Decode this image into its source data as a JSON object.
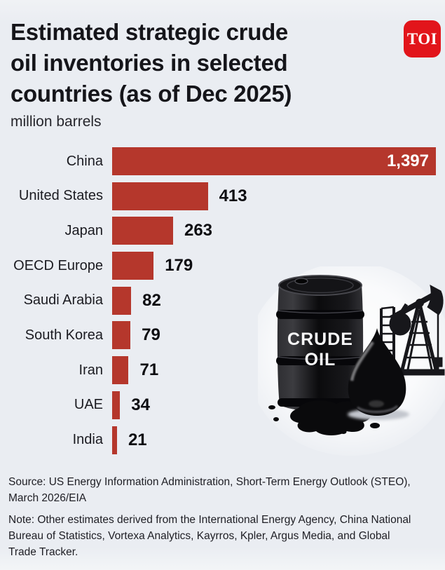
{
  "header": {
    "title_lines": [
      "Estimated strategic crude",
      "oil inventories in selected",
      "countries (as of Dec 2025)"
    ],
    "subtitle": "million barrels",
    "logo_text": "TOI",
    "logo_color": "#e2151b"
  },
  "chart_data": {
    "type": "bar",
    "orientation": "horizontal",
    "title": "Estimated strategic crude oil inventories in selected countries (as of Dec 2025)",
    "unit_label": "million barrels",
    "categories": [
      "China",
      "United States",
      "Japan",
      "OECD Europe",
      "Saudi Arabia",
      "South Korea",
      "Iran",
      "UAE",
      "India"
    ],
    "values": [
      1397,
      413,
      263,
      179,
      82,
      79,
      71,
      34,
      21
    ],
    "value_labels": [
      "1,397",
      "413",
      "263",
      "179",
      "82",
      "79",
      "71",
      "34",
      "21"
    ],
    "xlim": [
      0,
      1397
    ],
    "bar_color": "#b5372c",
    "grid": false,
    "legend": false
  },
  "illustration": {
    "barrel_text_line1": "CRUDE",
    "barrel_text_line2": "OIL"
  },
  "footer": {
    "source": "Source: US Energy Information Administration, Short-Term Energy Outlook (STEO), March 2026/EIA",
    "note": "Note: Other estimates derived from the International Energy Agency, China National Bureau of Statistics, Vortexa Analytics, Kayrros, Kpler, Argus Media, and Global Trade Tracker."
  }
}
